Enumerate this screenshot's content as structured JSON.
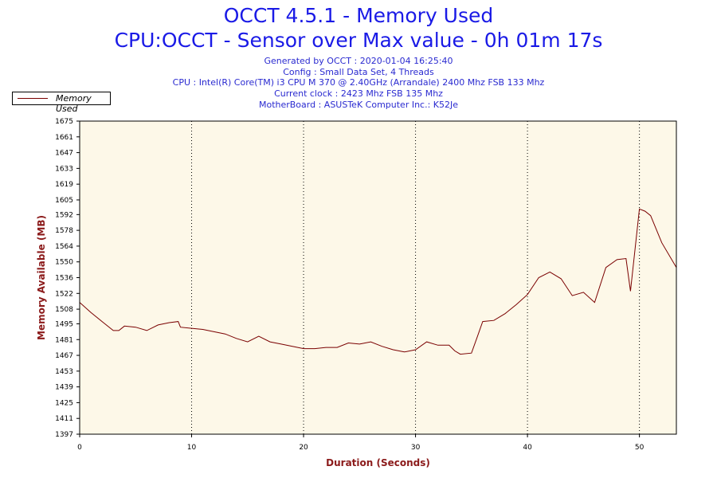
{
  "chart_data": {
    "type": "line",
    "title": "OCCT 4.5.1 - Memory Used",
    "subtitle": "CPU:OCCT - Sensor over Max value - 0h 01m 17s",
    "info_lines": [
      "Generated by OCCT : 2020-01-04 16:25:40",
      "Config : Small Data Set, 4 Threads",
      "CPU : Intel(R) Core(TM) i3 CPU M 370 @ 2.40GHz (Arrandale) 2400 Mhz FSB 133 Mhz",
      "Current clock : 2423 Mhz FSB 135 Mhz",
      "MotherBoard : ASUSTeK Computer Inc.: K52Je"
    ],
    "xlabel": "Duration (Seconds)",
    "ylabel": "Memory Available (MB)",
    "xlim": [
      0,
      53.3
    ],
    "ylim": [
      1397,
      1675
    ],
    "x_ticks": [
      "0",
      "10",
      "20",
      "30",
      "40",
      "50"
    ],
    "y_ticks": [
      "1675",
      "1661",
      "1647",
      "1633",
      "1619",
      "1605",
      "1592",
      "1578",
      "1564",
      "1550",
      "1536",
      "1522",
      "1508",
      "1495",
      "1481",
      "1467",
      "1453",
      "1439",
      "1425",
      "1411",
      "1397"
    ],
    "grid": "vertical-dotted",
    "legend_position": "top-left",
    "series": [
      {
        "name": "Memory Used",
        "color": "#7a0000",
        "x": [
          0,
          1,
          2,
          3,
          3.5,
          4,
          5,
          6,
          7,
          8,
          8.8,
          9,
          10,
          11,
          12,
          13,
          14,
          15,
          16,
          17,
          18,
          19,
          20,
          21,
          22,
          23,
          24,
          25,
          26,
          27,
          28,
          29,
          30,
          31,
          32,
          33,
          33.5,
          34,
          35,
          35.5,
          36,
          37,
          38,
          39,
          40,
          41,
          42,
          43,
          44,
          45,
          46,
          47,
          48,
          48.8,
          49.2,
          50,
          50.5,
          51,
          52,
          53.3
        ],
        "y": [
          1514,
          1505,
          1497,
          1489,
          1489,
          1493,
          1492,
          1489,
          1494,
          1496,
          1497,
          1492,
          1491,
          1490,
          1488,
          1486,
          1482,
          1479,
          1484,
          1479,
          1477,
          1475,
          1473,
          1473,
          1474,
          1474,
          1478,
          1477,
          1479,
          1475,
          1472,
          1470,
          1472,
          1479,
          1476,
          1476,
          1471,
          1468,
          1469,
          1483,
          1497,
          1498,
          1504,
          1512,
          1521,
          1536,
          1541,
          1535,
          1520,
          1523,
          1514,
          1545,
          1552,
          1553,
          1524,
          1597,
          1595,
          1591,
          1567,
          1545
        ]
      }
    ]
  }
}
